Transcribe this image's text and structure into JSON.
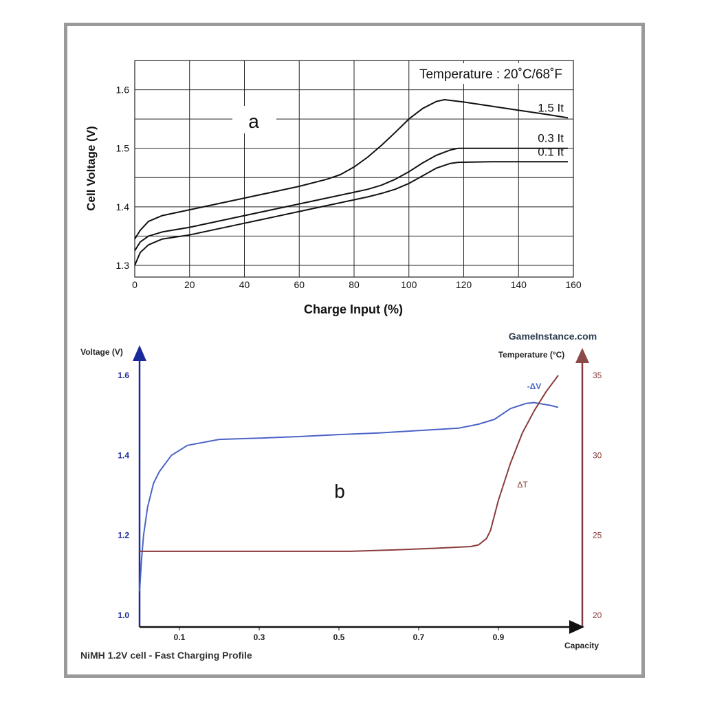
{
  "chart_data": [
    {
      "type": "line",
      "panel_label": "a",
      "annotation": "Temperature : 20˚C/68˚F",
      "xlabel": "Charge Input (%)",
      "ylabel": "Cell Voltage (V)",
      "xlim": [
        0,
        160
      ],
      "ylim": [
        1.28,
        1.65
      ],
      "x_ticks": [
        "0",
        "20",
        "40",
        "60",
        "80",
        "100",
        "120",
        "140",
        "160"
      ],
      "y_ticks": [
        "1.3",
        "1.4",
        "1.5",
        "1.6"
      ],
      "grid": true,
      "series": [
        {
          "name": "1.5 It",
          "x": [
            0,
            2,
            5,
            10,
            15,
            20,
            30,
            40,
            50,
            60,
            70,
            75,
            80,
            85,
            90,
            95,
            100,
            105,
            110,
            113,
            120,
            130,
            140,
            150,
            158
          ],
          "y": [
            1.345,
            1.36,
            1.375,
            1.385,
            1.39,
            1.395,
            1.405,
            1.415,
            1.425,
            1.435,
            1.447,
            1.455,
            1.468,
            1.485,
            1.505,
            1.527,
            1.55,
            1.568,
            1.58,
            1.583,
            1.579,
            1.572,
            1.565,
            1.558,
            1.552
          ]
        },
        {
          "name": "0.3 It",
          "x": [
            0,
            2,
            5,
            10,
            20,
            30,
            40,
            50,
            60,
            70,
            80,
            85,
            90,
            95,
            100,
            105,
            110,
            115,
            118,
            130,
            140,
            150,
            158
          ],
          "y": [
            1.325,
            1.34,
            1.35,
            1.357,
            1.365,
            1.375,
            1.385,
            1.395,
            1.405,
            1.415,
            1.425,
            1.43,
            1.437,
            1.447,
            1.46,
            1.475,
            1.488,
            1.497,
            1.5,
            1.5,
            1.5,
            1.5,
            1.5
          ]
        },
        {
          "name": "0.1 It",
          "x": [
            0,
            2,
            5,
            10,
            20,
            30,
            40,
            50,
            60,
            70,
            80,
            85,
            90,
            95,
            100,
            105,
            110,
            115,
            118,
            130,
            140,
            150,
            158
          ],
          "y": [
            1.3,
            1.322,
            1.335,
            1.345,
            1.352,
            1.362,
            1.372,
            1.382,
            1.392,
            1.402,
            1.412,
            1.417,
            1.423,
            1.43,
            1.44,
            1.453,
            1.466,
            1.474,
            1.476,
            1.477,
            1.477,
            1.477,
            1.477
          ]
        }
      ],
      "colors": {
        "line": "#111111",
        "grid": "#222222"
      }
    },
    {
      "type": "line",
      "panel_label": "b",
      "title": "NiMH 1.2V cell - Fast Charging Profile",
      "source": "GameInstance.com",
      "xlabel": "Capacity",
      "ylabel": "Voltage (V)",
      "y2label": "Temperature (°C)",
      "xlim": [
        0,
        1.05
      ],
      "ylim": [
        1.0,
        1.6
      ],
      "y2lim": [
        20,
        35
      ],
      "x_ticks": [
        "0.1",
        "0.3",
        "0.5",
        "0.7",
        "0.9"
      ],
      "y_ticks": [
        "1.0",
        "1.2",
        "1.4",
        "1.6"
      ],
      "y2_ticks": [
        "20",
        "25",
        "30",
        "35"
      ],
      "grid": false,
      "series": [
        {
          "name": "-ΔV",
          "axis": "left",
          "color": "#4a63c7",
          "x": [
            0,
            0.005,
            0.01,
            0.02,
            0.035,
            0.05,
            0.08,
            0.12,
            0.2,
            0.3,
            0.4,
            0.5,
            0.6,
            0.7,
            0.8,
            0.85,
            0.89,
            0.93,
            0.97,
            0.99,
            1.0,
            1.03,
            1.05
          ],
          "y": [
            1.06,
            1.14,
            1.2,
            1.27,
            1.33,
            1.36,
            1.4,
            1.425,
            1.44,
            1.443,
            1.447,
            1.452,
            1.456,
            1.462,
            1.468,
            1.478,
            1.49,
            1.517,
            1.53,
            1.532,
            1.53,
            1.525,
            1.52
          ]
        },
        {
          "name": "ΔT",
          "axis": "right",
          "color": "#8a3a3a",
          "x": [
            0,
            0.3,
            0.53,
            0.65,
            0.75,
            0.83,
            0.85,
            0.87,
            0.88,
            0.9,
            0.93,
            0.96,
            0.99,
            1.02,
            1.05
          ],
          "y": [
            24.0,
            24.0,
            24.0,
            24.1,
            24.2,
            24.3,
            24.4,
            24.8,
            25.3,
            27.2,
            29.5,
            31.4,
            32.8,
            34.0,
            35.0
          ]
        }
      ]
    }
  ]
}
